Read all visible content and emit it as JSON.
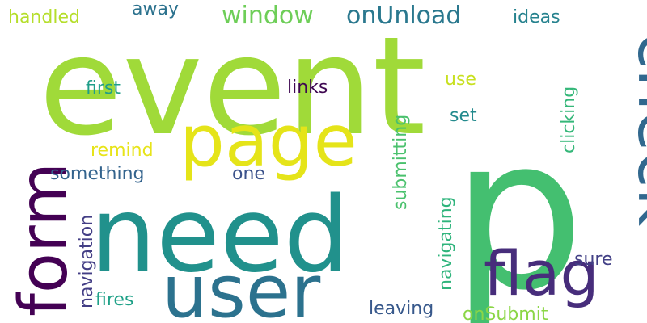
{
  "words": [
    {
      "id": "p",
      "text": "p",
      "color": "#44bf70"
    },
    {
      "id": "event",
      "text": "event",
      "color": "#a0da39"
    },
    {
      "id": "need",
      "text": "need",
      "color": "#21918c"
    },
    {
      "id": "check",
      "text": "check",
      "color": "#31688e"
    },
    {
      "id": "page",
      "text": "page",
      "color": "#e5e419"
    },
    {
      "id": "form",
      "text": "form",
      "color": "#440154"
    },
    {
      "id": "user",
      "text": "user",
      "color": "#2c728e"
    },
    {
      "id": "flag",
      "text": "flag",
      "color": "#472d7b"
    },
    {
      "id": "window",
      "text": "window",
      "color": "#6ece58"
    },
    {
      "id": "onUnload",
      "text": "onUnload",
      "color": "#2a788e"
    },
    {
      "id": "handled",
      "text": "handled",
      "color": "#b5de2b"
    },
    {
      "id": "away",
      "text": "away",
      "color": "#2c728e"
    },
    {
      "id": "ideas",
      "text": "ideas",
      "color": "#26828e"
    },
    {
      "id": "first",
      "text": "first",
      "color": "#1f9e89"
    },
    {
      "id": "links",
      "text": "links",
      "color": "#3e0751"
    },
    {
      "id": "use",
      "text": "use",
      "color": "#c8e020"
    },
    {
      "id": "set",
      "text": "set",
      "color": "#238a8d"
    },
    {
      "id": "remind",
      "text": "remind",
      "color": "#e7e419"
    },
    {
      "id": "something",
      "text": "something",
      "color": "#33638d"
    },
    {
      "id": "one",
      "text": "one",
      "color": "#3b528b"
    },
    {
      "id": "submitting",
      "text": "submitting",
      "color": "#4ac16d"
    },
    {
      "id": "clicking",
      "text": "clicking",
      "color": "#35b779"
    },
    {
      "id": "navigating",
      "text": "navigating",
      "color": "#2fb47c"
    },
    {
      "id": "navigation",
      "text": "navigation",
      "color": "#433e85"
    },
    {
      "id": "fires",
      "text": "fires",
      "color": "#1fa188"
    },
    {
      "id": "sure",
      "text": "sure",
      "color": "#424086"
    },
    {
      "id": "leaving",
      "text": "leaving",
      "color": "#38598c"
    },
    {
      "id": "onSubmit",
      "text": "onSubmit",
      "color": "#8bd646"
    }
  ]
}
